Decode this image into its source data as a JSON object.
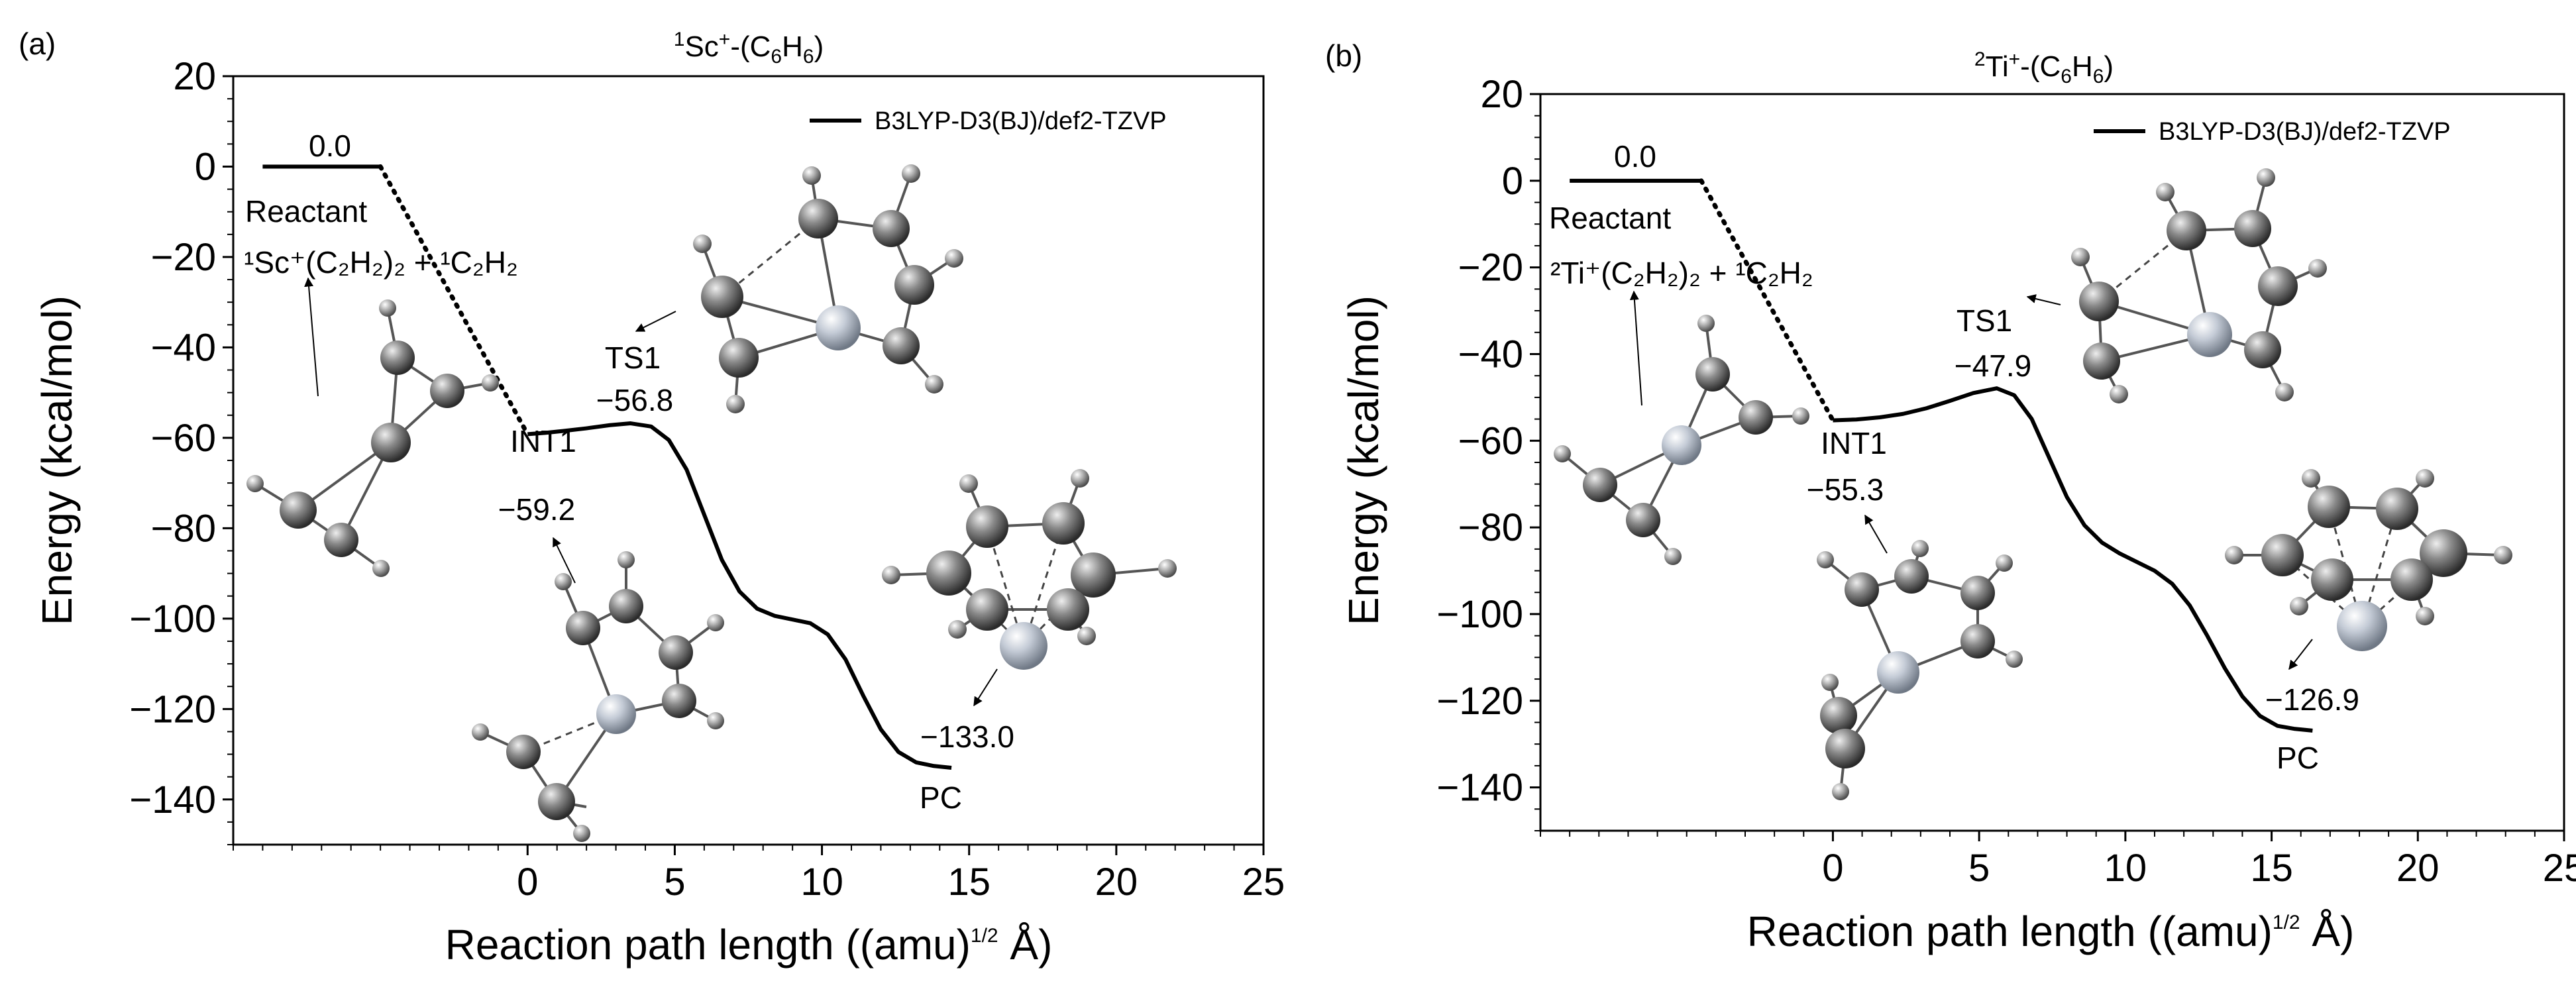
{
  "chart_data": [
    {
      "panel": "(a)",
      "type": "line",
      "title_main": "Sc",
      "title_mult": "1",
      "title_charge": "+",
      "title_ligand": "-(C",
      "title_sub1": "6",
      "title_mid": "H",
      "title_sub2": "6",
      "title_end": ")",
      "xlabel": "Reaction path length ((amu)",
      "xlabel_sup": "1/2",
      "xlabel_end": " Å)",
      "ylabel": "Energy (kcal/mol)",
      "xlim": [
        -10,
        25
      ],
      "ylim": [
        -150,
        20
      ],
      "xticks": [
        0,
        5,
        10,
        15,
        20,
        25
      ],
      "yticks": [
        20,
        0,
        -20,
        -40,
        -60,
        -80,
        -100,
        -120,
        -140
      ],
      "legend": "B3LYP-D3(BJ)/def2-TZVP",
      "reactant": {
        "x_start": -9,
        "x_end": -5,
        "energy": 0.0,
        "label_value": "0.0",
        "label": "Reactant",
        "formula": "¹Sc⁺(C₂H₂)₂ + ¹C₂H₂"
      },
      "path": {
        "x": [
          0,
          0.6,
          1.2,
          2.0,
          2.8,
          3.5,
          4.2,
          4.8,
          5.4,
          6.0,
          6.6,
          7.2,
          7.8,
          8.4,
          9.0,
          9.6,
          10.2,
          10.8,
          11.4,
          12.0,
          12.6,
          13.2,
          13.8,
          14.4
        ],
        "y": [
          -59.2,
          -58.9,
          -58.5,
          -57.9,
          -57.2,
          -56.8,
          -57.5,
          -60.5,
          -67,
          -77,
          -87,
          -94,
          -97.8,
          -99.4,
          -100.2,
          -101,
          -103.5,
          -109,
          -117,
          -124.5,
          -129.5,
          -131.8,
          -132.6,
          -133.0
        ]
      },
      "points": [
        {
          "name": "INT1",
          "energy": "−59.2"
        },
        {
          "name": "TS1",
          "energy": "−56.8"
        },
        {
          "name": "PC",
          "energy": "−133.0"
        }
      ]
    },
    {
      "panel": "(b)",
      "type": "line",
      "title_main": "Ti",
      "title_mult": "2",
      "title_charge": "+",
      "title_ligand": "-(C",
      "title_sub1": "6",
      "title_mid": "H",
      "title_sub2": "6",
      "title_end": ")",
      "xlabel": "Reaction path length ((amu)",
      "xlabel_sup": "1/2",
      "xlabel_end": " Å)",
      "ylabel": "Energy (kcal/mol)",
      "xlim": [
        -10,
        25
      ],
      "ylim": [
        -150,
        20
      ],
      "xticks": [
        0,
        5,
        10,
        15,
        20,
        25
      ],
      "yticks": [
        20,
        0,
        -20,
        -40,
        -60,
        -80,
        -100,
        -120,
        -140
      ],
      "legend": "B3LYP-D3(BJ)/def2-TZVP",
      "reactant": {
        "x_start": -9,
        "x_end": -4.5,
        "energy": 0.0,
        "label_value": "0.0",
        "label": "Reactant",
        "formula": "²Ti⁺(C₂H₂)₂ + ¹C₂H₂"
      },
      "path": {
        "x": [
          0,
          0.8,
          1.6,
          2.4,
          3.2,
          4.0,
          4.8,
          5.6,
          6.2,
          6.8,
          7.4,
          8.0,
          8.6,
          9.2,
          9.8,
          10.4,
          11.0,
          11.6,
          12.2,
          12.8,
          13.4,
          14.0,
          14.6,
          15.2,
          15.8,
          16.4
        ],
        "y": [
          -55.3,
          -55.1,
          -54.6,
          -53.8,
          -52.5,
          -50.8,
          -49.0,
          -47.9,
          -49.5,
          -55,
          -64,
          -73,
          -79.5,
          -83.5,
          -86,
          -88,
          -90,
          -93,
          -98,
          -105,
          -112.5,
          -119,
          -123.5,
          -125.8,
          -126.5,
          -126.9
        ]
      },
      "points": [
        {
          "name": "INT1",
          "energy": "−55.3"
        },
        {
          "name": "TS1",
          "energy": "−47.9"
        },
        {
          "name": "PC",
          "energy": "−126.9"
        }
      ]
    }
  ]
}
